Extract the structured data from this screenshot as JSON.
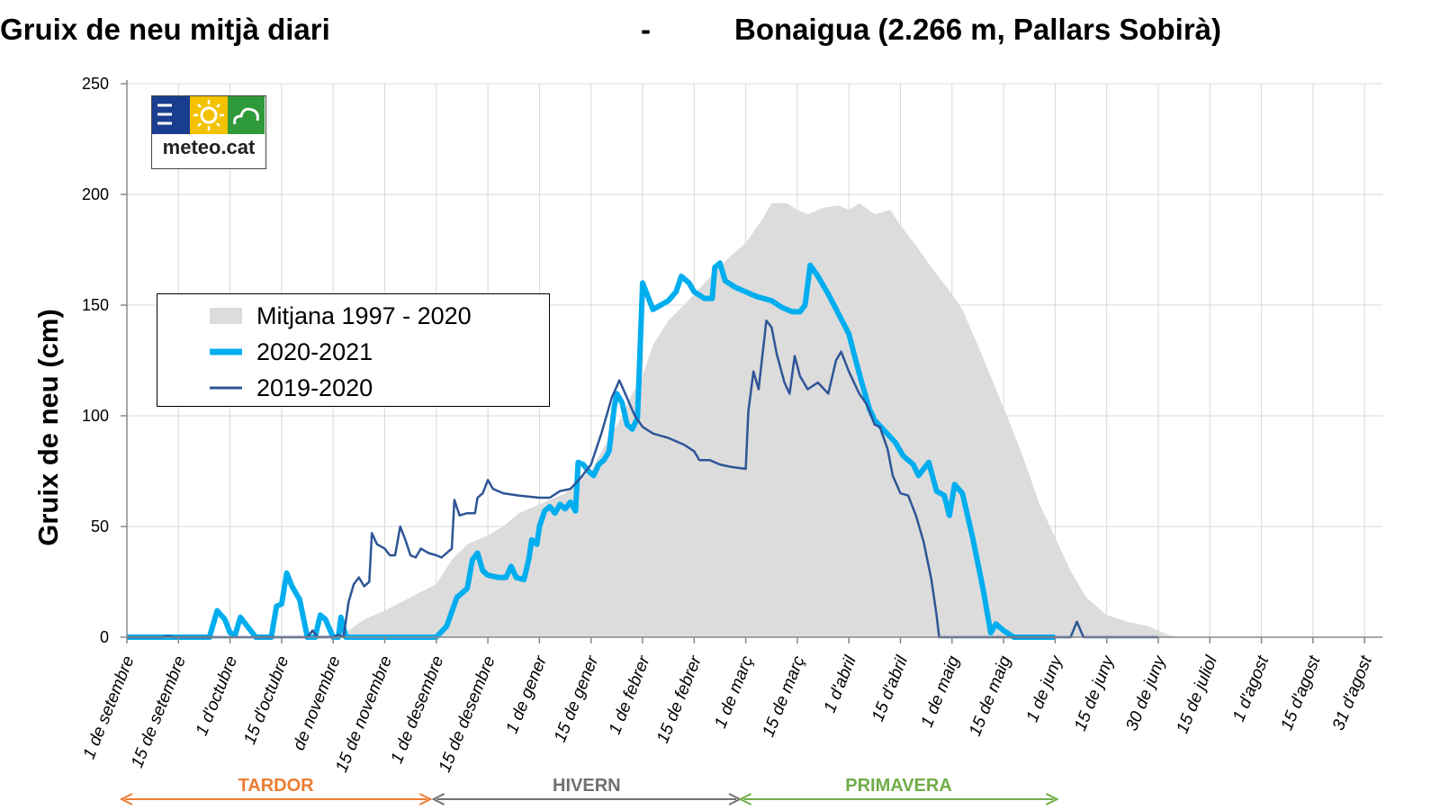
{
  "title": {
    "left": "Gruix de neu mitjà diari",
    "separator": "-",
    "right": "Bonaigua (2.266 m, Pallars Sobirà)"
  },
  "logo": {
    "text": "meteo.cat",
    "icons": [
      "menu-lines-icon",
      "sun-icon",
      "cloud-icon"
    ],
    "colors": [
      "#1a3e8f",
      "#f2c200",
      "#2e9a3a"
    ]
  },
  "chart_data": {
    "type": "area",
    "title": "Gruix de neu mitjà diari - Bonaigua (2.266 m, Pallars Sobirà)",
    "ylabel": "Gruix de neu (cm)",
    "xlabel": "",
    "ylim": [
      0,
      250
    ],
    "yticks": [
      0,
      50,
      100,
      150,
      200,
      250
    ],
    "grid": true,
    "xtick_labels": [
      "1 de setembre",
      "15 de setembre",
      "1 d'octubre",
      "15 d'octubre",
      "de novembre",
      "15 de novembre",
      "1 de desembre",
      "15 de desembre",
      "1 de gener",
      "15 de gener",
      "1 de febrer",
      "15 de febrer",
      "1 de març",
      "15 de març",
      "1 d'abril",
      "15 d'abril",
      "1 de maig",
      "15 de maig",
      "1 de juny",
      "15 de juny",
      "30 de juny",
      "15 de juliol",
      "1 d'agost",
      "15 d'agost",
      "31 d'agost"
    ],
    "x_note": "x values are the date-tick indices above (0 = 1 de setembre)",
    "series": [
      {
        "name": "Mitjana  1997 - 2020",
        "style": "area",
        "color": "#dcdcdc",
        "points": [
          [
            0,
            0
          ],
          [
            2,
            0
          ],
          [
            3,
            0.5
          ],
          [
            4,
            1
          ],
          [
            4.3,
            3
          ],
          [
            4.6,
            8
          ],
          [
            5,
            12
          ],
          [
            5.5,
            18
          ],
          [
            6,
            24
          ],
          [
            6.3,
            35
          ],
          [
            6.6,
            42
          ],
          [
            7,
            46
          ],
          [
            7.3,
            50
          ],
          [
            7.6,
            56
          ],
          [
            8,
            60
          ],
          [
            8.5,
            65
          ],
          [
            8.8,
            72
          ],
          [
            9,
            75
          ],
          [
            9.3,
            88
          ],
          [
            9.6,
            100
          ],
          [
            9.8,
            110
          ],
          [
            10,
            118
          ],
          [
            10.2,
            132
          ],
          [
            10.5,
            143
          ],
          [
            10.8,
            150
          ],
          [
            11,
            155
          ],
          [
            11.4,
            165
          ],
          [
            11.7,
            172
          ],
          [
            12,
            178
          ],
          [
            12.3,
            188
          ],
          [
            12.5,
            196
          ],
          [
            12.8,
            196
          ],
          [
            13,
            193
          ],
          [
            13.2,
            191
          ],
          [
            13.5,
            194
          ],
          [
            13.8,
            195
          ],
          [
            14,
            193
          ],
          [
            14.2,
            196
          ],
          [
            14.5,
            191
          ],
          [
            14.8,
            193
          ],
          [
            15,
            186
          ],
          [
            15.3,
            177
          ],
          [
            15.6,
            167
          ],
          [
            15.9,
            158
          ],
          [
            16.2,
            148
          ],
          [
            16.5,
            132
          ],
          [
            16.8,
            115
          ],
          [
            17.1,
            98
          ],
          [
            17.4,
            80
          ],
          [
            17.7,
            60
          ],
          [
            18,
            45
          ],
          [
            18.3,
            30
          ],
          [
            18.6,
            18
          ],
          [
            19,
            10
          ],
          [
            19.4,
            7
          ],
          [
            19.8,
            5
          ],
          [
            20,
            3
          ],
          [
            20.2,
            1
          ],
          [
            20.4,
            0
          ],
          [
            24,
            0
          ]
        ]
      },
      {
        "name": "2020-2021",
        "style": "thick-line",
        "color": "#00aeef",
        "points": [
          [
            0,
            0
          ],
          [
            1.6,
            0
          ],
          [
            1.75,
            12
          ],
          [
            1.9,
            8
          ],
          [
            2.0,
            2
          ],
          [
            2.1,
            1
          ],
          [
            2.2,
            9
          ],
          [
            2.3,
            6
          ],
          [
            2.5,
            0
          ],
          [
            2.8,
            0
          ],
          [
            2.9,
            14
          ],
          [
            3.0,
            15
          ],
          [
            3.1,
            29
          ],
          [
            3.2,
            23
          ],
          [
            3.35,
            17
          ],
          [
            3.5,
            0
          ],
          [
            3.65,
            0
          ],
          [
            3.75,
            10
          ],
          [
            3.85,
            8
          ],
          [
            4.0,
            0
          ],
          [
            4.1,
            0
          ],
          [
            4.15,
            9
          ],
          [
            4.25,
            0
          ],
          [
            6.0,
            0
          ],
          [
            6.2,
            5
          ],
          [
            6.4,
            18
          ],
          [
            6.6,
            22
          ],
          [
            6.7,
            35
          ],
          [
            6.8,
            38
          ],
          [
            6.9,
            30
          ],
          [
            7.0,
            28
          ],
          [
            7.2,
            27
          ],
          [
            7.35,
            27
          ],
          [
            7.45,
            32
          ],
          [
            7.55,
            27
          ],
          [
            7.7,
            26
          ],
          [
            7.8,
            36
          ],
          [
            7.85,
            44
          ],
          [
            7.95,
            42
          ],
          [
            8.0,
            50
          ],
          [
            8.1,
            57
          ],
          [
            8.2,
            59
          ],
          [
            8.3,
            56
          ],
          [
            8.4,
            60
          ],
          [
            8.5,
            58
          ],
          [
            8.6,
            61
          ],
          [
            8.7,
            57
          ],
          [
            8.75,
            79
          ],
          [
            8.85,
            78
          ],
          [
            8.95,
            75
          ],
          [
            9.05,
            73
          ],
          [
            9.15,
            78
          ],
          [
            9.25,
            80
          ],
          [
            9.35,
            84
          ],
          [
            9.45,
            104
          ],
          [
            9.5,
            110
          ],
          [
            9.6,
            106
          ],
          [
            9.7,
            96
          ],
          [
            9.8,
            94
          ],
          [
            9.9,
            99
          ],
          [
            10.0,
            160
          ],
          [
            10.2,
            148
          ],
          [
            10.35,
            150
          ],
          [
            10.5,
            152
          ],
          [
            10.65,
            156
          ],
          [
            10.75,
            163
          ],
          [
            10.9,
            160
          ],
          [
            11.0,
            156
          ],
          [
            11.2,
            153
          ],
          [
            11.35,
            153
          ],
          [
            11.4,
            167
          ],
          [
            11.5,
            169
          ],
          [
            11.6,
            161
          ],
          [
            11.8,
            158
          ],
          [
            12.0,
            156
          ],
          [
            12.2,
            154
          ],
          [
            12.5,
            152
          ],
          [
            12.7,
            149
          ],
          [
            12.9,
            147
          ],
          [
            13.05,
            147
          ],
          [
            13.15,
            150
          ],
          [
            13.25,
            168
          ],
          [
            13.4,
            163
          ],
          [
            13.6,
            155
          ],
          [
            13.8,
            146
          ],
          [
            14.0,
            137
          ],
          [
            14.1,
            128
          ],
          [
            14.25,
            115
          ],
          [
            14.4,
            103
          ],
          [
            14.5,
            98
          ],
          [
            14.7,
            93
          ],
          [
            14.9,
            88
          ],
          [
            15.05,
            82
          ],
          [
            15.25,
            78
          ],
          [
            15.35,
            73
          ],
          [
            15.55,
            79
          ],
          [
            15.7,
            66
          ],
          [
            15.85,
            64
          ],
          [
            15.95,
            55
          ],
          [
            16.05,
            69
          ],
          [
            16.2,
            65
          ],
          [
            16.4,
            45
          ],
          [
            16.6,
            22
          ],
          [
            16.75,
            2
          ],
          [
            16.85,
            6
          ],
          [
            17.0,
            3
          ],
          [
            17.2,
            0
          ],
          [
            18.0,
            0
          ]
        ]
      },
      {
        "name": "2019-2020",
        "style": "line",
        "color": "#2e5597",
        "points": [
          [
            0,
            0
          ],
          [
            0.7,
            0
          ],
          [
            0.8,
            0.5
          ],
          [
            0.9,
            0
          ],
          [
            3.5,
            0
          ],
          [
            3.6,
            3
          ],
          [
            3.7,
            0
          ],
          [
            4.0,
            0
          ],
          [
            4.1,
            1
          ],
          [
            4.2,
            0
          ],
          [
            4.3,
            16
          ],
          [
            4.4,
            24
          ],
          [
            4.5,
            27
          ],
          [
            4.6,
            23
          ],
          [
            4.7,
            25
          ],
          [
            4.75,
            47
          ],
          [
            4.85,
            42
          ],
          [
            5.0,
            40
          ],
          [
            5.1,
            37
          ],
          [
            5.2,
            37
          ],
          [
            5.3,
            50
          ],
          [
            5.4,
            44
          ],
          [
            5.5,
            37
          ],
          [
            5.6,
            36
          ],
          [
            5.7,
            40
          ],
          [
            5.85,
            38
          ],
          [
            6.0,
            37
          ],
          [
            6.1,
            36
          ],
          [
            6.3,
            40
          ],
          [
            6.35,
            62
          ],
          [
            6.45,
            55
          ],
          [
            6.6,
            56
          ],
          [
            6.75,
            56
          ],
          [
            6.8,
            63
          ],
          [
            6.9,
            65
          ],
          [
            7.0,
            71
          ],
          [
            7.1,
            67
          ],
          [
            7.3,
            65
          ],
          [
            7.6,
            64
          ],
          [
            8.0,
            63
          ],
          [
            8.2,
            63
          ],
          [
            8.4,
            66
          ],
          [
            8.6,
            67
          ],
          [
            8.8,
            72
          ],
          [
            9.0,
            78
          ],
          [
            9.2,
            92
          ],
          [
            9.4,
            108
          ],
          [
            9.55,
            116
          ],
          [
            9.7,
            108
          ],
          [
            9.85,
            100
          ],
          [
            10.0,
            95
          ],
          [
            10.2,
            92
          ],
          [
            10.5,
            90
          ],
          [
            10.8,
            87
          ],
          [
            11.0,
            84
          ],
          [
            11.1,
            80
          ],
          [
            11.3,
            80
          ],
          [
            11.5,
            78
          ],
          [
            11.7,
            77
          ],
          [
            12.0,
            76
          ],
          [
            12.05,
            102
          ],
          [
            12.15,
            120
          ],
          [
            12.25,
            112
          ],
          [
            12.4,
            143
          ],
          [
            12.5,
            140
          ],
          [
            12.6,
            128
          ],
          [
            12.75,
            115
          ],
          [
            12.85,
            110
          ],
          [
            12.95,
            127
          ],
          [
            13.05,
            118
          ],
          [
            13.2,
            112
          ],
          [
            13.4,
            115
          ],
          [
            13.6,
            110
          ],
          [
            13.75,
            125
          ],
          [
            13.85,
            129
          ],
          [
            14.0,
            120
          ],
          [
            14.2,
            110
          ],
          [
            14.35,
            105
          ],
          [
            14.5,
            96
          ],
          [
            14.6,
            95
          ],
          [
            14.75,
            85
          ],
          [
            14.85,
            73
          ],
          [
            15.0,
            65
          ],
          [
            15.15,
            64
          ],
          [
            15.3,
            55
          ],
          [
            15.45,
            43
          ],
          [
            15.6,
            26
          ],
          [
            15.7,
            10
          ],
          [
            15.75,
            0
          ],
          [
            18.3,
            0
          ],
          [
            18.42,
            7
          ],
          [
            18.55,
            0
          ],
          [
            20,
            0
          ]
        ]
      }
    ],
    "season_bands": [
      {
        "label": "TARDOR",
        "from": 0,
        "to": 5.85,
        "color": "#ed7d31"
      },
      {
        "label": "HIVERN",
        "from": 6.05,
        "to": 11.85,
        "color": "#707070"
      },
      {
        "label": "PRIMAVERA",
        "from": 12.0,
        "to": 18.0,
        "color": "#70ad47"
      }
    ]
  }
}
